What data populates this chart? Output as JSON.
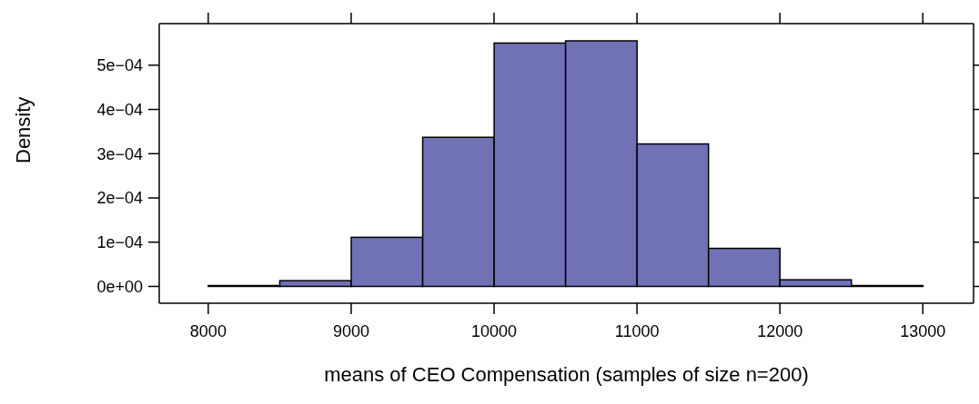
{
  "chart_data": {
    "type": "histogram",
    "xlabel": "means of CEO Compensation (samples of size n=200)",
    "ylabel": "Density",
    "bins": [
      8000,
      8500,
      9000,
      9500,
      10000,
      10500,
      11000,
      11500,
      12000,
      12500,
      13000
    ],
    "values": [
      2e-06,
      1.3e-05,
      0.000111,
      0.000337,
      0.00055,
      0.000555,
      0.000322,
      8.6e-05,
      1.5e-05,
      2e-06
    ],
    "color": "#7171b5",
    "xlim": [
      7657,
      13355
    ],
    "xticks": [
      8000,
      9000,
      10000,
      11000,
      12000,
      13000
    ],
    "ylim": [
      -3.8e-05,
      0.000594
    ],
    "yticks": [
      {
        "value": 0,
        "label": "0e+00"
      },
      {
        "value": 0.0001,
        "label": "1e−04"
      },
      {
        "value": 0.0002,
        "label": "2e−04"
      },
      {
        "value": 0.0003,
        "label": "3e−04"
      },
      {
        "value": 0.0004,
        "label": "4e−04"
      },
      {
        "value": 0.0005,
        "label": "5e−04"
      }
    ],
    "grid": false
  }
}
